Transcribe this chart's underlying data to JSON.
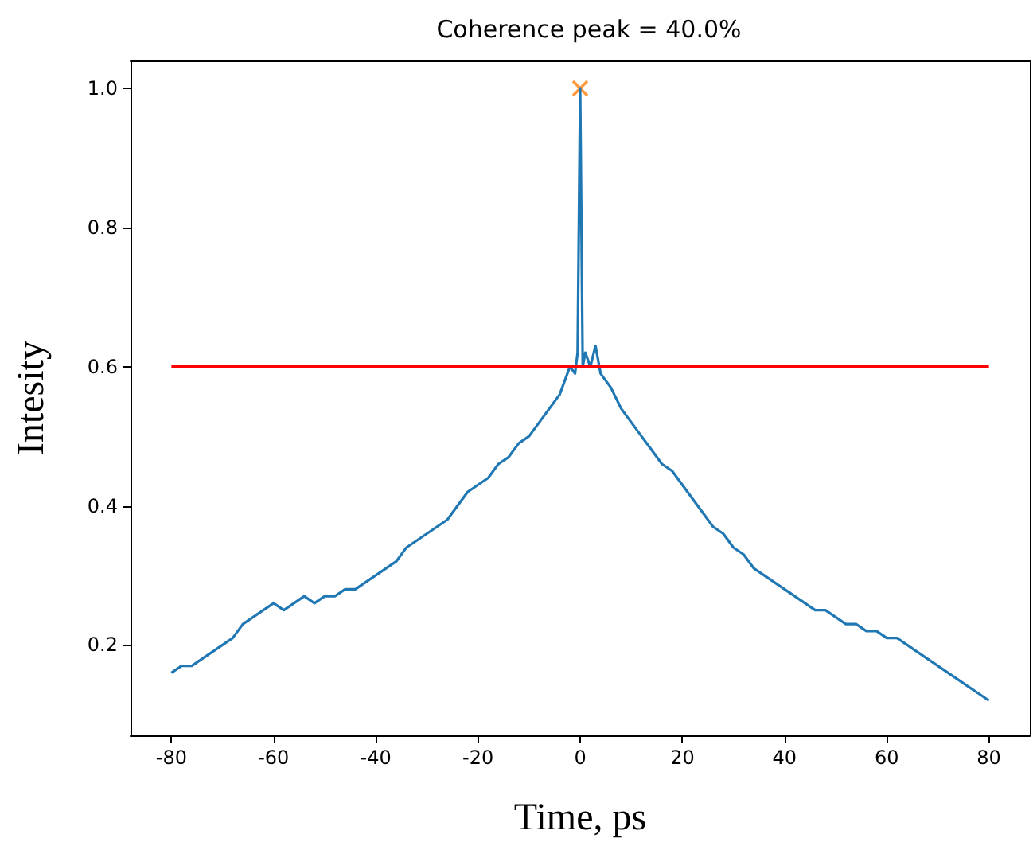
{
  "chart_data": {
    "type": "line",
    "title": "Coherence peak = 40.0%",
    "xlabel": "Time, ps",
    "ylabel": "Intesity",
    "xlim": [
      -88,
      88
    ],
    "ylim": [
      0.07,
      1.04
    ],
    "xticks": [
      -80,
      -60,
      -40,
      -20,
      0,
      20,
      40,
      60,
      80
    ],
    "yticks": [
      {
        "value": 0.2,
        "label": "0.2"
      },
      {
        "value": 0.4,
        "label": "0.4"
      },
      {
        "value": 0.6,
        "label": "0.6"
      },
      {
        "value": 0.8,
        "label": "0.8"
      },
      {
        "value": 1.0,
        "label": "1.0"
      }
    ],
    "grid": false,
    "series": [
      {
        "color": "#1f77b4",
        "x": [
          -80,
          -78,
          -76,
          -74,
          -72,
          -70,
          -68,
          -66,
          -64,
          -62,
          -60,
          -58,
          -56,
          -54,
          -52,
          -50,
          -48,
          -46,
          -44,
          -42,
          -40,
          -38,
          -36,
          -34,
          -32,
          -30,
          -28,
          -26,
          -24,
          -22,
          -20,
          -18,
          -16,
          -14,
          -12,
          -10,
          -8,
          -6,
          -4,
          -3,
          -2,
          -1,
          -0.5,
          0,
          0.5,
          1,
          2,
          3,
          4,
          5,
          6,
          8,
          10,
          12,
          14,
          16,
          18,
          20,
          22,
          24,
          26,
          28,
          30,
          32,
          34,
          36,
          38,
          40,
          42,
          44,
          46,
          48,
          50,
          52,
          54,
          56,
          58,
          60,
          62,
          64,
          66,
          68,
          70,
          72,
          74,
          76,
          78,
          80
        ],
        "values": [
          0.16,
          0.17,
          0.17,
          0.18,
          0.19,
          0.2,
          0.21,
          0.23,
          0.24,
          0.25,
          0.26,
          0.25,
          0.26,
          0.27,
          0.26,
          0.27,
          0.27,
          0.28,
          0.28,
          0.29,
          0.3,
          0.31,
          0.32,
          0.34,
          0.35,
          0.36,
          0.37,
          0.38,
          0.4,
          0.42,
          0.43,
          0.44,
          0.46,
          0.47,
          0.49,
          0.5,
          0.52,
          0.54,
          0.56,
          0.58,
          0.6,
          0.59,
          0.62,
          1.0,
          0.6,
          0.62,
          0.6,
          0.63,
          0.59,
          0.58,
          0.57,
          0.54,
          0.52,
          0.5,
          0.48,
          0.46,
          0.45,
          0.43,
          0.41,
          0.39,
          0.37,
          0.36,
          0.34,
          0.33,
          0.31,
          0.3,
          0.29,
          0.28,
          0.27,
          0.26,
          0.25,
          0.25,
          0.24,
          0.23,
          0.23,
          0.22,
          0.22,
          0.21,
          0.21,
          0.2,
          0.19,
          0.18,
          0.17,
          0.16,
          0.15,
          0.14,
          0.13,
          0.12
        ]
      },
      {
        "type": "line",
        "color": "#ff0000",
        "x": [
          -80,
          80
        ],
        "values": [
          0.6,
          0.6
        ]
      },
      {
        "type": "scatter",
        "color": "#ff7f0e",
        "marker": "cross",
        "x": [
          0
        ],
        "values": [
          1.0
        ]
      }
    ]
  }
}
